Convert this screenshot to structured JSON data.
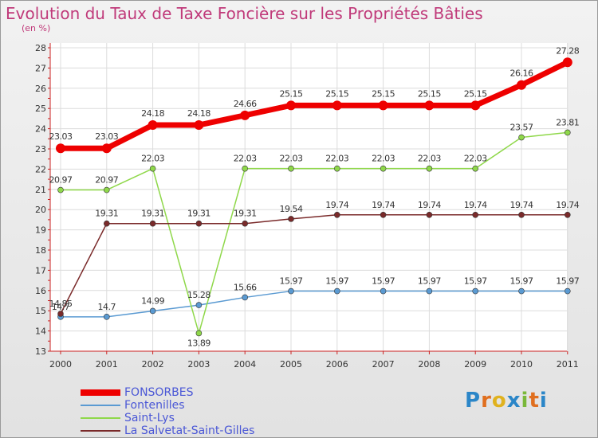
{
  "chart_data": {
    "type": "line",
    "title": "Evolution du Taux de Taxe Foncière sur les Propriétés Bâties",
    "ylabel": "(en %)",
    "xlabel": "",
    "categories": [
      "2000",
      "2001",
      "2002",
      "2003",
      "2004",
      "2005",
      "2006",
      "2007",
      "2008",
      "2009",
      "2010",
      "2011"
    ],
    "y_ticks": [
      "13",
      "14",
      "15",
      "16",
      "17",
      "18",
      "19",
      "20",
      "21",
      "22",
      "23",
      "24",
      "25",
      "26",
      "27",
      "28"
    ],
    "ylim": [
      13,
      28
    ],
    "grid": true,
    "legend_position": "bottom-left",
    "series": [
      {
        "name": "FONSORBES",
        "color": "#ee0000",
        "values": [
          23.03,
          23.03,
          24.18,
          24.18,
          24.66,
          25.15,
          25.15,
          25.15,
          25.15,
          25.15,
          26.16,
          27.28
        ],
        "labels": [
          "23.03",
          "23.03",
          "24.18",
          "24.18",
          "24.66",
          "25.15",
          "25.15",
          "25.15",
          "25.15",
          "25.15",
          "26.16",
          "27.28"
        ]
      },
      {
        "name": "Fontenilles",
        "color": "#5a9ad2",
        "values": [
          14.7,
          14.7,
          14.99,
          15.28,
          15.66,
          15.97,
          15.97,
          15.97,
          15.97,
          15.97,
          15.97,
          15.97
        ],
        "labels": [
          "14.7",
          "14.7",
          "14.99",
          "15.28",
          "15.66",
          "15.97",
          "15.97",
          "15.97",
          "15.97",
          "15.97",
          "15.97",
          "15.97"
        ]
      },
      {
        "name": "Saint-Lys",
        "color": "#8fd84a",
        "values": [
          20.97,
          20.97,
          22.03,
          13.89,
          22.03,
          22.03,
          22.03,
          22.03,
          22.03,
          22.03,
          23.57,
          23.81
        ],
        "labels": [
          "20.97",
          "20.97",
          "22.03",
          "13.89",
          "22.03",
          "22.03",
          "22.03",
          "22.03",
          "22.03",
          "22.03",
          "23.57",
          "23.81"
        ]
      },
      {
        "name": "La Salvetat-Saint-Gilles",
        "color": "#7a2a2a",
        "values": [
          14.85,
          19.31,
          19.31,
          19.31,
          19.31,
          19.54,
          19.74,
          19.74,
          19.74,
          19.74,
          19.74,
          19.74
        ],
        "labels": [
          "14.85",
          "19.31",
          "19.31",
          "19.31",
          "19.31",
          "19.54",
          "19.74",
          "19.74",
          "19.74",
          "19.74",
          "19.74",
          "19.74"
        ]
      }
    ]
  },
  "logo": {
    "letters": [
      "P",
      "r",
      "o",
      "x",
      "i",
      "t",
      "i"
    ],
    "colors": [
      "#2b86c8",
      "#e06f1f",
      "#e0b21f",
      "#2b86c8",
      "#7ab83a",
      "#e06f1f",
      "#2b86c8"
    ]
  }
}
